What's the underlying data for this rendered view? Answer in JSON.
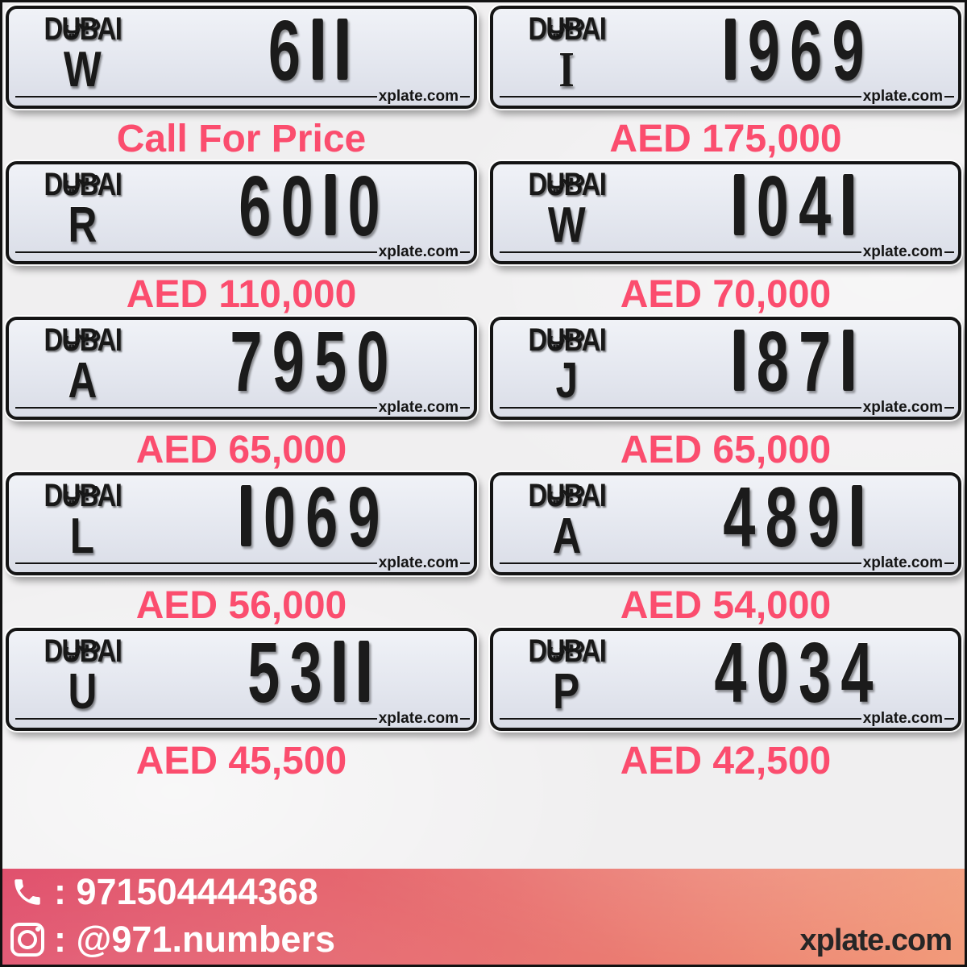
{
  "plate_template": {
    "logo_text": "DUBAI",
    "logo_arabic": "دبي",
    "watermark": "xplate.com"
  },
  "plates": [
    {
      "letter": "W",
      "number": "611",
      "price": "Call For Price"
    },
    {
      "letter": "I",
      "number": "1969",
      "price": "AED 175,000"
    },
    {
      "letter": "R",
      "number": "6010",
      "price": "AED 110,000"
    },
    {
      "letter": "W",
      "number": "1041",
      "price": "AED 70,000"
    },
    {
      "letter": "A",
      "number": "7950",
      "price": "AED 65,000"
    },
    {
      "letter": "J",
      "number": "1871",
      "price": "AED 65,000"
    },
    {
      "letter": "L",
      "number": "1069",
      "price": "AED 56,000"
    },
    {
      "letter": "A",
      "number": "4891",
      "price": "AED 54,000"
    },
    {
      "letter": "U",
      "number": "5311",
      "price": "AED 45,500"
    },
    {
      "letter": "P",
      "number": "4034",
      "price": "AED 42,500"
    }
  ],
  "footer": {
    "phone_icon": "phone-icon",
    "phone_text": ": 971504444368",
    "instagram_icon": "instagram-icon",
    "instagram_text": ": @971.numbers",
    "site_text": "xplate.com"
  },
  "colors": {
    "price_pink": "#fb4d6e",
    "plate_border": "#141414",
    "plate_face": "#e4e7ef",
    "footer_gradient_left": "#e04f6c",
    "footer_gradient_right": "#f29b7a",
    "page_background": "#f0eff0"
  }
}
